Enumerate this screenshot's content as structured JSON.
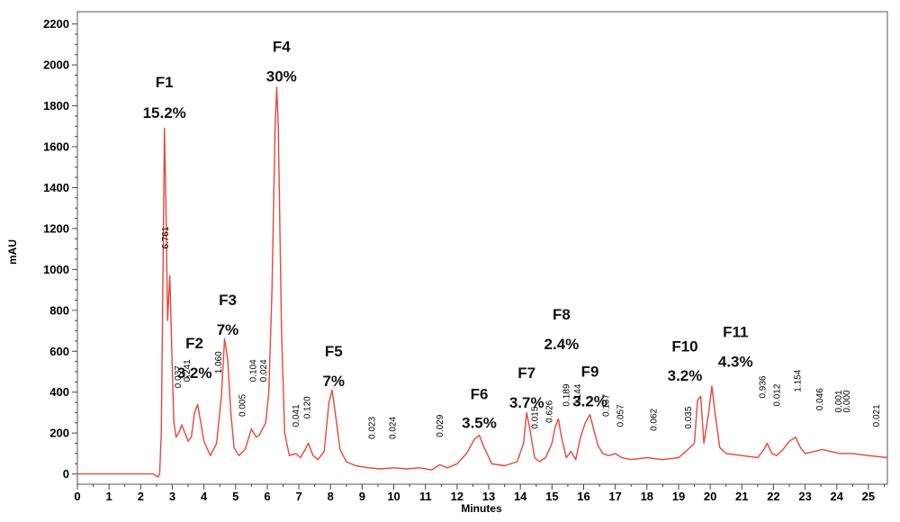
{
  "chart_data": {
    "type": "line",
    "title": "",
    "xlabel": "Minutes",
    "ylabel": "mAU",
    "xlim": [
      0,
      25.6
    ],
    "ylim": [
      -50,
      2260
    ],
    "x_ticks": [
      0,
      1,
      2,
      3,
      4,
      5,
      6,
      7,
      8,
      9,
      10,
      11,
      12,
      13,
      14,
      15,
      16,
      17,
      18,
      19,
      20,
      21,
      22,
      23,
      24,
      25
    ],
    "y_ticks": [
      0,
      200,
      400,
      600,
      800,
      1000,
      1200,
      1400,
      1600,
      1800,
      2000,
      2200
    ],
    "line_color": "#e8463a",
    "series": [
      {
        "x": [
          0,
          2.4,
          2.55,
          2.6,
          2.65,
          2.7,
          2.75,
          2.8,
          2.85,
          2.92,
          3.0,
          3.05,
          3.12,
          3.2,
          3.3,
          3.4,
          3.5,
          3.6,
          3.7,
          3.8,
          3.9,
          4.0,
          4.2,
          4.4,
          4.55,
          4.65,
          4.75,
          4.85,
          4.95,
          5.1,
          5.3,
          5.5,
          5.65,
          5.75,
          5.85,
          5.95,
          6.05,
          6.15,
          6.25,
          6.3,
          6.35,
          6.4,
          6.45,
          6.55,
          6.7,
          6.9,
          7.05,
          7.2,
          7.3,
          7.45,
          7.6,
          7.8,
          7.95,
          8.05,
          8.15,
          8.3,
          8.5,
          8.8,
          9.2,
          9.6,
          10.0,
          10.4,
          10.8,
          11.2,
          11.45,
          11.7,
          12.0,
          12.3,
          12.55,
          12.7,
          12.85,
          13.1,
          13.5,
          13.9,
          14.1,
          14.2,
          14.3,
          14.45,
          14.6,
          14.8,
          15.0,
          15.1,
          15.2,
          15.3,
          15.45,
          15.6,
          15.75,
          15.9,
          16.05,
          16.2,
          16.3,
          16.45,
          16.6,
          16.8,
          17.0,
          17.2,
          17.5,
          18.0,
          18.5,
          19.0,
          19.3,
          19.5,
          19.6,
          19.7,
          19.8,
          19.95,
          20.05,
          20.15,
          20.3,
          20.5,
          21.0,
          21.5,
          21.7,
          21.8,
          21.95,
          22.1,
          22.3,
          22.5,
          22.7,
          22.85,
          23.0,
          23.3,
          23.55,
          23.8,
          24.1,
          24.5,
          25.0,
          25.6
        ],
        "y": [
          0,
          0,
          -15,
          0,
          200,
          900,
          1690,
          1300,
          750,
          970,
          500,
          250,
          180,
          200,
          240,
          200,
          160,
          180,
          300,
          340,
          250,
          160,
          90,
          150,
          380,
          660,
          560,
          300,
          130,
          90,
          120,
          220,
          180,
          190,
          220,
          250,
          400,
          900,
          1700,
          1890,
          1700,
          1200,
          700,
          200,
          90,
          100,
          80,
          120,
          150,
          90,
          70,
          110,
          350,
          410,
          300,
          120,
          60,
          40,
          30,
          25,
          30,
          25,
          30,
          20,
          45,
          30,
          50,
          100,
          170,
          190,
          130,
          50,
          40,
          60,
          150,
          300,
          220,
          80,
          60,
          80,
          150,
          230,
          270,
          180,
          80,
          110,
          70,
          180,
          250,
          290,
          230,
          140,
          100,
          90,
          100,
          80,
          70,
          80,
          70,
          80,
          120,
          150,
          360,
          380,
          150,
          300,
          430,
          300,
          130,
          100,
          90,
          80,
          120,
          150,
          100,
          90,
          120,
          160,
          180,
          130,
          100,
          110,
          120,
          110,
          100,
          100,
          90,
          80
        ]
      }
    ],
    "peak_labels": [
      {
        "text": "6.761",
        "x": 2.88,
        "y": 1100
      },
      {
        "text": "0.037",
        "x": 3.27,
        "y": 420
      },
      {
        "text": "0.241",
        "x": 3.55,
        "y": 450
      },
      {
        "text": "1.060",
        "x": 4.55,
        "y": 490
      },
      {
        "text": "0.005",
        "x": 5.3,
        "y": 280
      },
      {
        "text": "0.104",
        "x": 5.65,
        "y": 450
      },
      {
        "text": "0.024",
        "x": 5.97,
        "y": 450
      },
      {
        "text": "0.041",
        "x": 7.0,
        "y": 230
      },
      {
        "text": "0.120",
        "x": 7.35,
        "y": 270
      },
      {
        "text": "0.023",
        "x": 9.4,
        "y": 170
      },
      {
        "text": "0.024",
        "x": 10.05,
        "y": 170
      },
      {
        "text": "0.029",
        "x": 11.55,
        "y": 180
      },
      {
        "text": "0.015",
        "x": 14.55,
        "y": 220
      },
      {
        "text": "0.626",
        "x": 15.0,
        "y": 250
      },
      {
        "text": "0.189",
        "x": 15.55,
        "y": 330
      },
      {
        "text": "0.144",
        "x": 15.9,
        "y": 330
      },
      {
        "text": "0.137",
        "x": 16.8,
        "y": 280
      },
      {
        "text": "0.057",
        "x": 17.25,
        "y": 230
      },
      {
        "text": "0.062",
        "x": 18.3,
        "y": 210
      },
      {
        "text": "0.035",
        "x": 19.4,
        "y": 220
      },
      {
        "text": "0.936",
        "x": 21.75,
        "y": 370
      },
      {
        "text": "0.012",
        "x": 22.2,
        "y": 330
      },
      {
        "text": "1.154",
        "x": 22.85,
        "y": 400
      },
      {
        "text": "0.046",
        "x": 23.55,
        "y": 310
      },
      {
        "text": "0.001",
        "x": 24.15,
        "y": 300
      },
      {
        "text": "0.000",
        "x": 24.4,
        "y": 300
      },
      {
        "text": "0.021",
        "x": 25.35,
        "y": 230
      }
    ],
    "fraction_labels": [
      {
        "name": "F1",
        "pct": "15.2%",
        "x": 2.75,
        "y_name": 1890,
        "y_pct": 1740
      },
      {
        "name": "F2",
        "pct": "3.2%",
        "x": 3.7,
        "y_name": 615,
        "y_pct": 470
      },
      {
        "name": "F3",
        "pct": "7%",
        "x": 4.75,
        "y_name": 825,
        "y_pct": 680
      },
      {
        "name": "F4",
        "pct": "30%",
        "x": 6.45,
        "y_name": 2065,
        "y_pct": 1920
      },
      {
        "name": "F5",
        "pct": "7%",
        "x": 8.1,
        "y_name": 575,
        "y_pct": 430
      },
      {
        "name": "F6",
        "pct": "3.5%",
        "x": 12.7,
        "y_name": 365,
        "y_pct": 225
      },
      {
        "name": "F7",
        "pct": "3.7%",
        "x": 14.2,
        "y_name": 470,
        "y_pct": 325
      },
      {
        "name": "F8",
        "pct": "2.4%",
        "x": 15.3,
        "y_name": 755,
        "y_pct": 610
      },
      {
        "name": "F9",
        "pct": "3.2%",
        "x": 16.2,
        "y_name": 475,
        "y_pct": 330
      },
      {
        "name": "F10",
        "pct": "3.2%",
        "x": 19.2,
        "y_name": 600,
        "y_pct": 455
      },
      {
        "name": "F11",
        "pct": "4.3%",
        "x": 20.8,
        "y_name": 670,
        "y_pct": 525
      }
    ]
  }
}
